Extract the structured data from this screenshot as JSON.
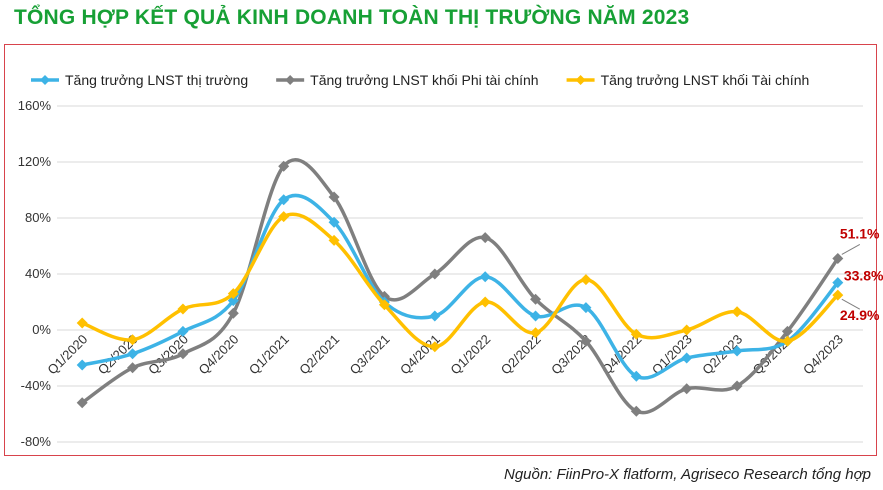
{
  "title": "TỔNG HỢP KẾT QUẢ KINH DOANH TOÀN THỊ TRƯỜNG NĂM 2023",
  "source": "Nguồn: FiinPro-X flatform, Agriseco Research tổng hợp",
  "colors": {
    "title": "#17a035",
    "frame": "#d8434c",
    "annotation": "#c00000"
  },
  "chart_data": {
    "type": "line",
    "x": [
      "Q1/2020",
      "Q2/2020",
      "Q3/2020",
      "Q4/2020",
      "Q1/2021",
      "Q2/2021",
      "Q3/2021",
      "Q4/2021",
      "Q1/2022",
      "Q2/2022",
      "Q3/2022",
      "Q4/2022",
      "Q1/2023",
      "Q2/2023",
      "Q3/2023",
      "Q4/2023"
    ],
    "ylim": [
      -80,
      160
    ],
    "yticks": [
      "-80%",
      "-40%",
      "0%",
      "40%",
      "80%",
      "120%",
      "160%"
    ],
    "ytick_values": [
      -80,
      -40,
      0,
      40,
      80,
      120,
      160
    ],
    "grid": true,
    "legend_position": "top",
    "series": [
      {
        "name": "Tăng trưởng LNST thị trường",
        "color": "#3db3e6",
        "values": [
          -25,
          -17,
          -1,
          21,
          93,
          77,
          20,
          10,
          38,
          10,
          16,
          -33,
          -20,
          -15,
          -8,
          33.8
        ]
      },
      {
        "name": "Tăng trưởng LNST khối Phi tài chính",
        "color": "#7f7f7f",
        "values": [
          -52,
          -27,
          -17,
          12,
          117,
          95,
          24,
          40,
          66,
          22,
          -8,
          -58,
          -42,
          -40,
          -1,
          51.1
        ]
      },
      {
        "name": "Tăng trưởng LNST khối Tài chính",
        "color": "#ffc000",
        "values": [
          5,
          -7,
          15,
          26,
          81,
          64,
          18,
          -12,
          20,
          -2,
          36,
          -3,
          0,
          13,
          -8,
          24.9
        ]
      }
    ],
    "annotations": [
      "51.1%",
      "33.8%",
      "24.9%"
    ]
  }
}
